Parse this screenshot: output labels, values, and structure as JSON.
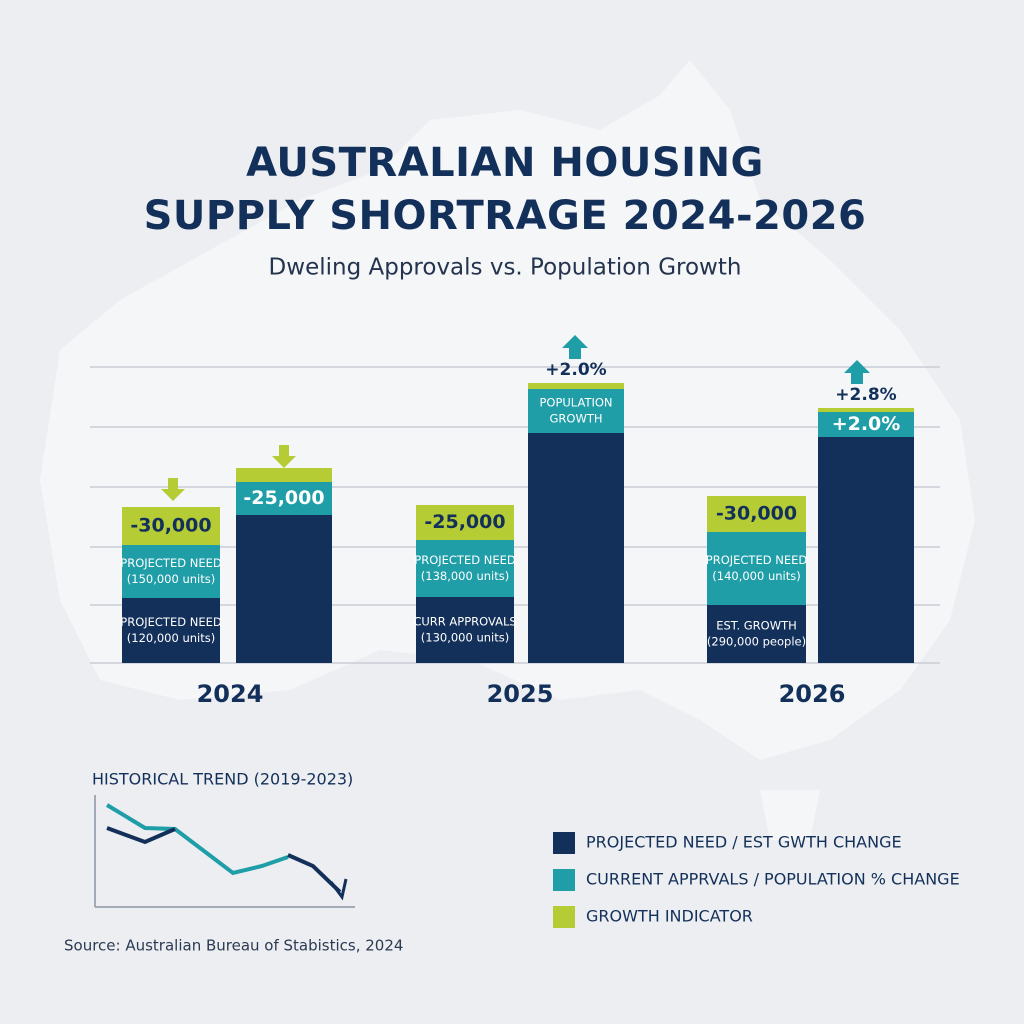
{
  "header": {
    "title_lines": [
      "AUSTRALIAN HOUSING",
      "SUPPLY SHORTRAGE 2024-2026"
    ],
    "subtitle": "Dweling Approvals vs. Population Growth"
  },
  "groups": [
    {
      "year": "2024",
      "bars": [
        {
          "segments": [
            {
              "lines": [
                "-30,000"
              ]
            },
            {
              "lines": [
                "PROJECTED NEED",
                "(150,000 units)"
              ]
            },
            {
              "lines": [
                "PROJECTED NEED",
                "(120,000 units)"
              ]
            }
          ]
        },
        {
          "segments": [
            {
              "lines": []
            },
            {
              "lines": [
                "-25,000"
              ]
            },
            {
              "lines": []
            }
          ]
        }
      ]
    },
    {
      "year": "2025",
      "bars": [
        {
          "segments": [
            {
              "lines": [
                "-25,000"
              ]
            },
            {
              "lines": [
                "PROJECTED NEED",
                "(138,000 units)"
              ]
            },
            {
              "lines": [
                "CURR APPROVALS",
                "(130,000 units)"
              ]
            }
          ]
        },
        {
          "top_label": "+2.0%",
          "segments": [
            {
              "lines": []
            },
            {
              "lines": [
                "POPULATION",
                "GROWTH"
              ]
            },
            {
              "lines": []
            }
          ]
        }
      ]
    },
    {
      "year": "2026",
      "bars": [
        {
          "segments": [
            {
              "lines": [
                "-30,000"
              ]
            },
            {
              "lines": [
                "PROJECTED NEED",
                "(140,000 units)"
              ]
            },
            {
              "lines": [
                "EST. GROWTH",
                "(290,000 people)"
              ]
            }
          ]
        },
        {
          "top_label": "+2.8%",
          "segments": [
            {
              "lines": []
            },
            {
              "lines": [
                "+2.0%"
              ]
            },
            {
              "lines": []
            }
          ]
        }
      ]
    }
  ],
  "trend": {
    "title": "HISTORICAL TREND (2019-2023)"
  },
  "legend": [
    {
      "label": "PROJECTED NEED / EST GWTH CHANGE",
      "color": "#13305a"
    },
    {
      "label": "CURRENT APPRVALS / POPULATION % CHANGE",
      "color": "#1f9ea8"
    },
    {
      "label": "GROWTH INDICATOR",
      "color": "#b5cc35"
    }
  ],
  "source": "Source: Australian Bureau of Stabistics, 2024"
}
